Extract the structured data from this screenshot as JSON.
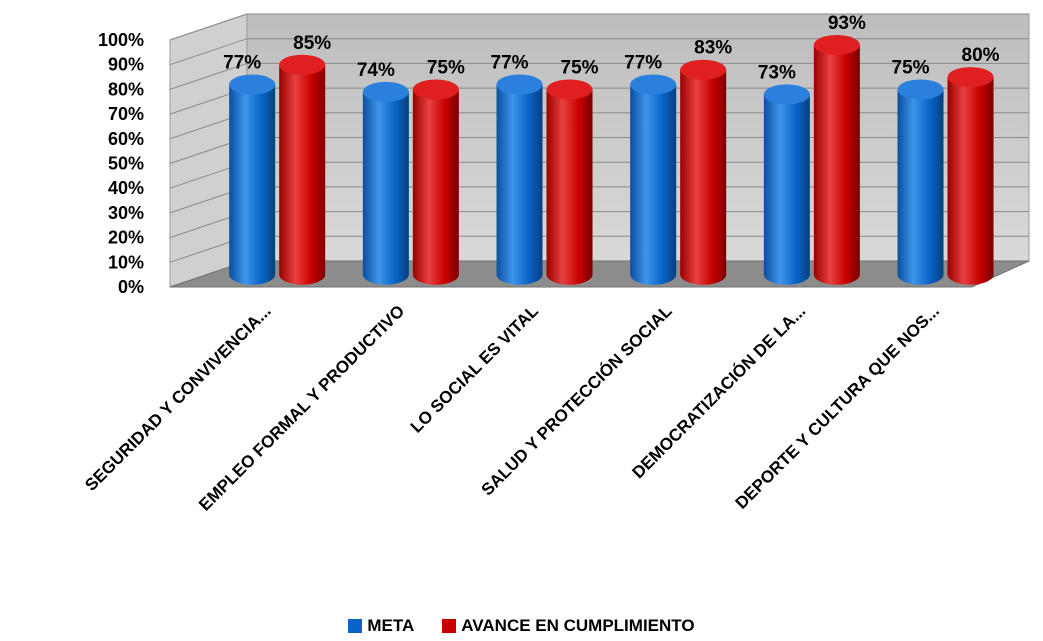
{
  "chart_data": {
    "type": "bar",
    "categories": [
      "SEGURIDAD Y CONVIVENCIA...",
      "EMPLEO FORMAL Y PRODUCTIVO",
      "LO SOCIAL ES VITAL",
      "SALUD Y PROTECCIÓN SOCIAL",
      "DEMOCRATIZACIÓN DE LA...",
      "DEPORTE Y CULTURA QUE NOS..."
    ],
    "series": [
      {
        "name": "META",
        "values": [
          77,
          74,
          77,
          77,
          73,
          75
        ],
        "labels": [
          "77%",
          "74%",
          "77%",
          "77%",
          "73%",
          "75%"
        ],
        "color": "#0a64c8"
      },
      {
        "name": "AVANCE EN CUMPLIMIENTO",
        "values": [
          85,
          75,
          75,
          83,
          93,
          80
        ],
        "labels": [
          "85%",
          "75%",
          "75%",
          "83%",
          "93%",
          "80%"
        ],
        "color": "#c80000"
      }
    ],
    "ylim": [
      0,
      100
    ],
    "y_ticks": [
      "0%",
      "10%",
      "20%",
      "30%",
      "40%",
      "50%",
      "60%",
      "70%",
      "80%",
      "90%",
      "100%"
    ],
    "grid": true,
    "style": "3d-cylinder",
    "legend_position": "bottom"
  }
}
